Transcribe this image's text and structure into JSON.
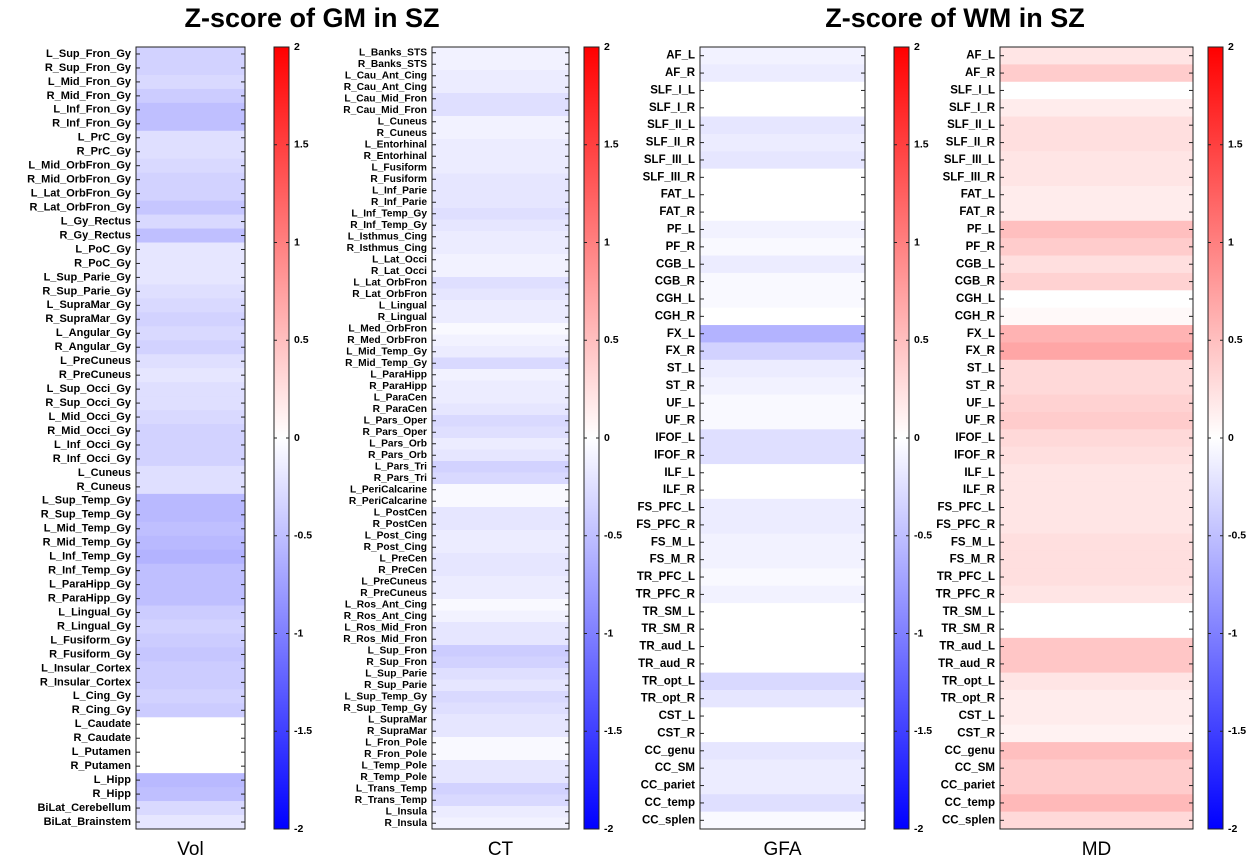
{
  "chart_data": [
    {
      "type": "heatmap",
      "title": "Z-score of GM in SZ",
      "xlabel": "Vol",
      "categories": [
        "L_Sup_Fron_Gy",
        "R_Sup_Fron_Gy",
        "L_Mid_Fron_Gy",
        "R_Mid_Fron_Gy",
        "L_Inf_Fron_Gy",
        "R_Inf_Fron_Gy",
        "L_PrC_Gy",
        "R_PrC_Gy",
        "L_Mid_OrbFron_Gy",
        "R_Mid_OrbFron_Gy",
        "L_Lat_OrbFron_Gy",
        "R_Lat_OrbFron_Gy",
        "L_Gy_Rectus",
        "R_Gy_Rectus",
        "L_PoC_Gy",
        "R_PoC_Gy",
        "L_Sup_Parie_Gy",
        "R_Sup_Parie_Gy",
        "L_SupraMar_Gy",
        "R_SupraMar_Gy",
        "L_Angular_Gy",
        "R_Angular_Gy",
        "L_PreCuneus",
        "R_PreCuneus",
        "L_Sup_Occi_Gy",
        "R_Sup_Occi_Gy",
        "L_Mid_Occi_Gy",
        "R_Mid_Occi_Gy",
        "L_Inf_Occi_Gy",
        "R_Inf_Occi_Gy",
        "L_Cuneus",
        "R_Cuneus",
        "L_Sup_Temp_Gy",
        "R_Sup_Temp_Gy",
        "L_Mid_Temp_Gy",
        "R_Mid_Temp_Gy",
        "L_Inf_Temp_Gy",
        "R_Inf_Temp_Gy",
        "L_ParaHipp_Gy",
        "R_ParaHipp_Gy",
        "L_Lingual_Gy",
        "R_Lingual_Gy",
        "L_Fusiform_Gy",
        "R_Fusiform_Gy",
        "L_Insular_Cortex",
        "R_Insular_Cortex",
        "L_Cing_Gy",
        "R_Cing_Gy",
        "L_Caudate",
        "R_Caudate",
        "L_Putamen",
        "R_Putamen",
        "L_Hipp",
        "R_Hipp",
        "BiLat_Cerebellum",
        "BiLat_Brainstem"
      ],
      "values": [
        -0.35,
        -0.35,
        -0.3,
        -0.4,
        -0.5,
        -0.5,
        -0.25,
        -0.25,
        -0.3,
        -0.35,
        -0.35,
        -0.45,
        -0.3,
        -0.5,
        -0.2,
        -0.2,
        -0.2,
        -0.25,
        -0.3,
        -0.35,
        -0.3,
        -0.35,
        -0.25,
        -0.2,
        -0.25,
        -0.25,
        -0.3,
        -0.35,
        -0.35,
        -0.35,
        -0.25,
        -0.25,
        -0.55,
        -0.55,
        -0.5,
        -0.55,
        -0.6,
        -0.5,
        -0.5,
        -0.5,
        -0.4,
        -0.35,
        -0.4,
        -0.45,
        -0.4,
        -0.4,
        -0.35,
        -0.4,
        0,
        0,
        0,
        0,
        -0.55,
        -0.5,
        -0.3,
        -0.2
      ],
      "zlim": [
        -2,
        2
      ],
      "zticks": [
        2,
        1.5,
        1,
        0.5,
        0,
        -0.5,
        -1,
        -1.5,
        -2
      ],
      "colormap": [
        "#0000ff",
        "#ffffff",
        "#ff0000"
      ]
    },
    {
      "type": "heatmap",
      "xlabel": "CT",
      "categories": [
        "L_Banks_STS",
        "R_Banks_STS",
        "L_Cau_Ant_Cing",
        "R_Cau_Ant_Cing",
        "L_Cau_Mid_Fron",
        "R_Cau_Mid_Fron",
        "L_Cuneus",
        "R_Cuneus",
        "L_Entorhinal",
        "R_Entorhinal",
        "L_Fusiform",
        "R_Fusiform",
        "L_Inf_Parie",
        "R_Inf_Parie",
        "L_Inf_Temp_Gy",
        "R_Inf_Temp_Gy",
        "L_Isthmus_Cing",
        "R_Isthmus_Cing",
        "L_Lat_Occi",
        "R_Lat_Occi",
        "L_Lat_OrbFron",
        "R_Lat_OrbFron",
        "L_Lingual",
        "R_Lingual",
        "L_Med_OrbFron",
        "R_Med_OrbFron",
        "L_Mid_Temp_Gy",
        "R_Mid_Temp_Gy",
        "L_ParaHipp",
        "R_ParaHipp",
        "L_ParaCen",
        "R_ParaCen",
        "L_Pars_Oper",
        "R_Pars_Oper",
        "L_Pars_Orb",
        "R_Pars_Orb",
        "L_Pars_Tri",
        "R_Pars_Tri",
        "L_PeriCalcarine",
        "R_PeriCalcarine",
        "L_PostCen",
        "R_PostCen",
        "L_Post_Cing",
        "R_Post_Cing",
        "L_PreCen",
        "R_PreCen",
        "L_PreCuneus",
        "R_PreCuneus",
        "L_Ros_Ant_Cing",
        "R_Ros_Ant_Cing",
        "L_Ros_Mid_Fron",
        "R_Ros_Mid_Fron",
        "L_Sup_Fron",
        "R_Sup_Fron",
        "L_Sup_Parie",
        "R_Sup_Parie",
        "L_Sup_Temp_Gy",
        "R_Sup_Temp_Gy",
        "L_SupraMar",
        "R_SupraMar",
        "L_Fron_Pole",
        "R_Fron_Pole",
        "L_Temp_Pole",
        "R_Temp_Pole",
        "L_Trans_Temp",
        "R_Trans_Temp",
        "L_Insula",
        "R_Insula"
      ],
      "values": [
        -0.1,
        -0.1,
        -0.15,
        -0.15,
        -0.25,
        -0.25,
        -0.1,
        -0.1,
        -0.15,
        -0.15,
        -0.15,
        -0.2,
        -0.2,
        -0.2,
        -0.25,
        -0.2,
        -0.15,
        -0.15,
        -0.1,
        -0.1,
        -0.25,
        -0.2,
        -0.15,
        -0.15,
        -0.05,
        -0.1,
        -0.15,
        -0.3,
        -0.1,
        -0.15,
        -0.15,
        -0.2,
        -0.3,
        -0.25,
        -0.15,
        -0.2,
        -0.35,
        -0.3,
        -0.05,
        -0.05,
        -0.2,
        -0.2,
        -0.15,
        -0.15,
        -0.2,
        -0.2,
        -0.15,
        -0.15,
        -0.05,
        -0.1,
        -0.2,
        -0.2,
        -0.4,
        -0.35,
        -0.25,
        -0.2,
        -0.3,
        -0.25,
        -0.2,
        -0.2,
        -0.05,
        -0.05,
        -0.2,
        -0.2,
        -0.35,
        -0.3,
        -0.15,
        -0.1
      ],
      "zlim": [
        -2,
        2
      ],
      "zticks": [
        2,
        1.5,
        1,
        0.5,
        0,
        -0.5,
        -1,
        -1.5,
        -2
      ],
      "colormap": [
        "#0000ff",
        "#ffffff",
        "#ff0000"
      ]
    },
    {
      "type": "heatmap",
      "title": "Z-score of WM in SZ",
      "xlabel": "GFA",
      "categories": [
        "AF_L",
        "AF_R",
        "SLF_I_L",
        "SLF_I_R",
        "SLF_II_L",
        "SLF_II_R",
        "SLF_III_L",
        "SLF_III_R",
        "FAT_L",
        "FAT_R",
        "PF_L",
        "PF_R",
        "CGB_L",
        "CGB_R",
        "CGH_L",
        "CGH_R",
        "FX_L",
        "FX_R",
        "ST_L",
        "ST_R",
        "UF_L",
        "UF_R",
        "IFOF_L",
        "IFOF_R",
        "ILF_L",
        "ILF_R",
        "FS_PFC_L",
        "FS_PFC_R",
        "FS_M_L",
        "FS_M_R",
        "TR_PFC_L",
        "TR_PFC_R",
        "TR_SM_L",
        "TR_SM_R",
        "TR_aud_L",
        "TR_aud_R",
        "TR_opt_L",
        "TR_opt_R",
        "CST_L",
        "CST_R",
        "CC_genu",
        "CC_SM",
        "CC_pariet",
        "CC_temp",
        "CC_splen"
      ],
      "values": [
        -0.1,
        -0.15,
        0,
        0,
        -0.2,
        -0.15,
        -0.2,
        0,
        0,
        0,
        -0.1,
        -0.05,
        -0.15,
        -0.05,
        -0.05,
        0,
        -0.6,
        -0.35,
        -0.15,
        -0.1,
        -0.05,
        -0.05,
        -0.25,
        -0.25,
        0,
        0,
        -0.15,
        -0.15,
        -0.1,
        -0.1,
        -0.05,
        -0.1,
        0,
        0,
        0,
        0,
        -0.3,
        -0.2,
        0,
        0,
        -0.2,
        -0.15,
        -0.15,
        -0.25,
        -0.05
      ],
      "zlim": [
        -2,
        2
      ],
      "zticks": [
        2,
        1.5,
        1,
        0.5,
        0,
        -0.5,
        -1,
        -1.5,
        -2
      ],
      "colormap": [
        "#0000ff",
        "#ffffff",
        "#ff0000"
      ]
    },
    {
      "type": "heatmap",
      "xlabel": "MD",
      "categories": [
        "AF_L",
        "AF_R",
        "SLF_I_L",
        "SLF_I_R",
        "SLF_II_L",
        "SLF_II_R",
        "SLF_III_L",
        "SLF_III_R",
        "FAT_L",
        "FAT_R",
        "PF_L",
        "PF_R",
        "CGB_L",
        "CGB_R",
        "CGH_L",
        "CGH_R",
        "FX_L",
        "FX_R",
        "ST_L",
        "ST_R",
        "UF_L",
        "UF_R",
        "IFOF_L",
        "IFOF_R",
        "ILF_L",
        "ILF_R",
        "FS_PFC_L",
        "FS_PFC_R",
        "FS_M_L",
        "FS_M_R",
        "TR_PFC_L",
        "TR_PFC_R",
        "TR_SM_L",
        "TR_SM_R",
        "TR_aud_L",
        "TR_aud_R",
        "TR_opt_L",
        "TR_opt_R",
        "CST_L",
        "CST_R",
        "CC_genu",
        "CC_SM",
        "CC_pariet",
        "CC_temp",
        "CC_splen"
      ],
      "values": [
        0.2,
        0.4,
        0,
        0.15,
        0.25,
        0.25,
        0.2,
        0.2,
        0.15,
        0.15,
        0.5,
        0.4,
        0.25,
        0.35,
        0,
        0.05,
        0.6,
        0.7,
        0.3,
        0.3,
        0.35,
        0.4,
        0.3,
        0.25,
        0.2,
        0.2,
        0.2,
        0.2,
        0.25,
        0.25,
        0.25,
        0.2,
        0,
        0,
        0.45,
        0.45,
        0.2,
        0.15,
        0.15,
        0.1,
        0.5,
        0.4,
        0.4,
        0.55,
        0.3
      ],
      "zlim": [
        -2,
        2
      ],
      "zticks": [
        2,
        1.5,
        1,
        0.5,
        0,
        -0.5,
        -1,
        -1.5,
        -2
      ],
      "colormap": [
        "#0000ff",
        "#ffffff",
        "#ff0000"
      ]
    }
  ]
}
